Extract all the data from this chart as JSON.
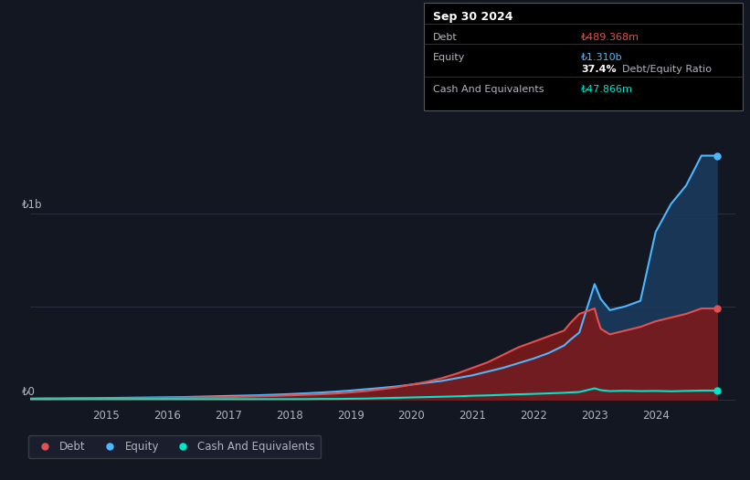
{
  "bg_color": "#131722",
  "plot_bg_color": "#131722",
  "title": "Sep 30 2024",
  "tooltip": {
    "debt_label": "Debt",
    "debt_value": "₺489.368m",
    "equity_label": "Equity",
    "equity_value": "₺1.310b",
    "ratio_value": "37.4%",
    "ratio_label": "Debt/Equity Ratio",
    "cash_label": "Cash And Equivalents",
    "cash_value": "₺47.866m"
  },
  "ylabel_top": "₺1b",
  "ylabel_bottom": "₺0",
  "x_ticks": [
    2015,
    2016,
    2017,
    2018,
    2019,
    2020,
    2021,
    2022,
    2023,
    2024
  ],
  "years": [
    2013.75,
    2014.0,
    2014.25,
    2014.5,
    2014.75,
    2015.0,
    2015.25,
    2015.5,
    2015.75,
    2016.0,
    2016.25,
    2016.5,
    2016.75,
    2017.0,
    2017.25,
    2017.5,
    2017.75,
    2018.0,
    2018.25,
    2018.5,
    2018.75,
    2019.0,
    2019.25,
    2019.5,
    2019.75,
    2020.0,
    2020.25,
    2020.5,
    2020.75,
    2021.0,
    2021.25,
    2021.5,
    2021.75,
    2022.0,
    2022.25,
    2022.5,
    2022.6,
    2022.75,
    2023.0,
    2023.05,
    2023.1,
    2023.25,
    2023.5,
    2023.75,
    2024.0,
    2024.25,
    2024.5,
    2024.75,
    2025.0
  ],
  "debt": [
    0.003,
    0.003,
    0.004,
    0.004,
    0.005,
    0.005,
    0.006,
    0.007,
    0.008,
    0.009,
    0.01,
    0.011,
    0.012,
    0.013,
    0.015,
    0.017,
    0.019,
    0.022,
    0.025,
    0.028,
    0.032,
    0.038,
    0.045,
    0.055,
    0.065,
    0.08,
    0.095,
    0.115,
    0.14,
    0.17,
    0.2,
    0.24,
    0.28,
    0.31,
    0.34,
    0.37,
    0.41,
    0.46,
    0.489,
    0.43,
    0.38,
    0.35,
    0.37,
    0.39,
    0.42,
    0.44,
    0.46,
    0.489,
    0.489
  ],
  "equity": [
    0.005,
    0.006,
    0.006,
    0.007,
    0.007,
    0.008,
    0.009,
    0.01,
    0.011,
    0.012,
    0.013,
    0.015,
    0.017,
    0.019,
    0.021,
    0.023,
    0.026,
    0.029,
    0.033,
    0.037,
    0.042,
    0.048,
    0.055,
    0.062,
    0.07,
    0.08,
    0.09,
    0.1,
    0.115,
    0.13,
    0.15,
    0.17,
    0.195,
    0.22,
    0.25,
    0.29,
    0.32,
    0.36,
    0.62,
    0.58,
    0.54,
    0.48,
    0.5,
    0.53,
    0.9,
    1.05,
    1.15,
    1.31,
    1.31
  ],
  "cash": [
    0.002,
    0.002,
    0.002,
    0.002,
    0.002,
    0.002,
    0.002,
    0.002,
    0.002,
    0.002,
    0.002,
    0.002,
    0.002,
    0.002,
    0.002,
    0.002,
    0.002,
    0.002,
    0.002,
    0.003,
    0.003,
    0.004,
    0.005,
    0.007,
    0.009,
    0.011,
    0.013,
    0.015,
    0.017,
    0.02,
    0.022,
    0.025,
    0.028,
    0.03,
    0.033,
    0.036,
    0.038,
    0.04,
    0.06,
    0.055,
    0.05,
    0.045,
    0.047,
    0.045,
    0.046,
    0.044,
    0.046,
    0.048,
    0.048
  ],
  "debt_color": "#e05252",
  "equity_color": "#4db8ff",
  "cash_color": "#00e5cc",
  "debt_fill": "#7a1a1a",
  "equity_fill": "#1a3a5c",
  "grid_color": "#2a3040",
  "text_color": "#b2b5be",
  "legend_items": [
    "Debt",
    "Equity",
    "Cash And Equivalents"
  ],
  "xmin": 2013.75,
  "xmax": 2025.3,
  "ymin": -0.02,
  "ymax": 1.45
}
